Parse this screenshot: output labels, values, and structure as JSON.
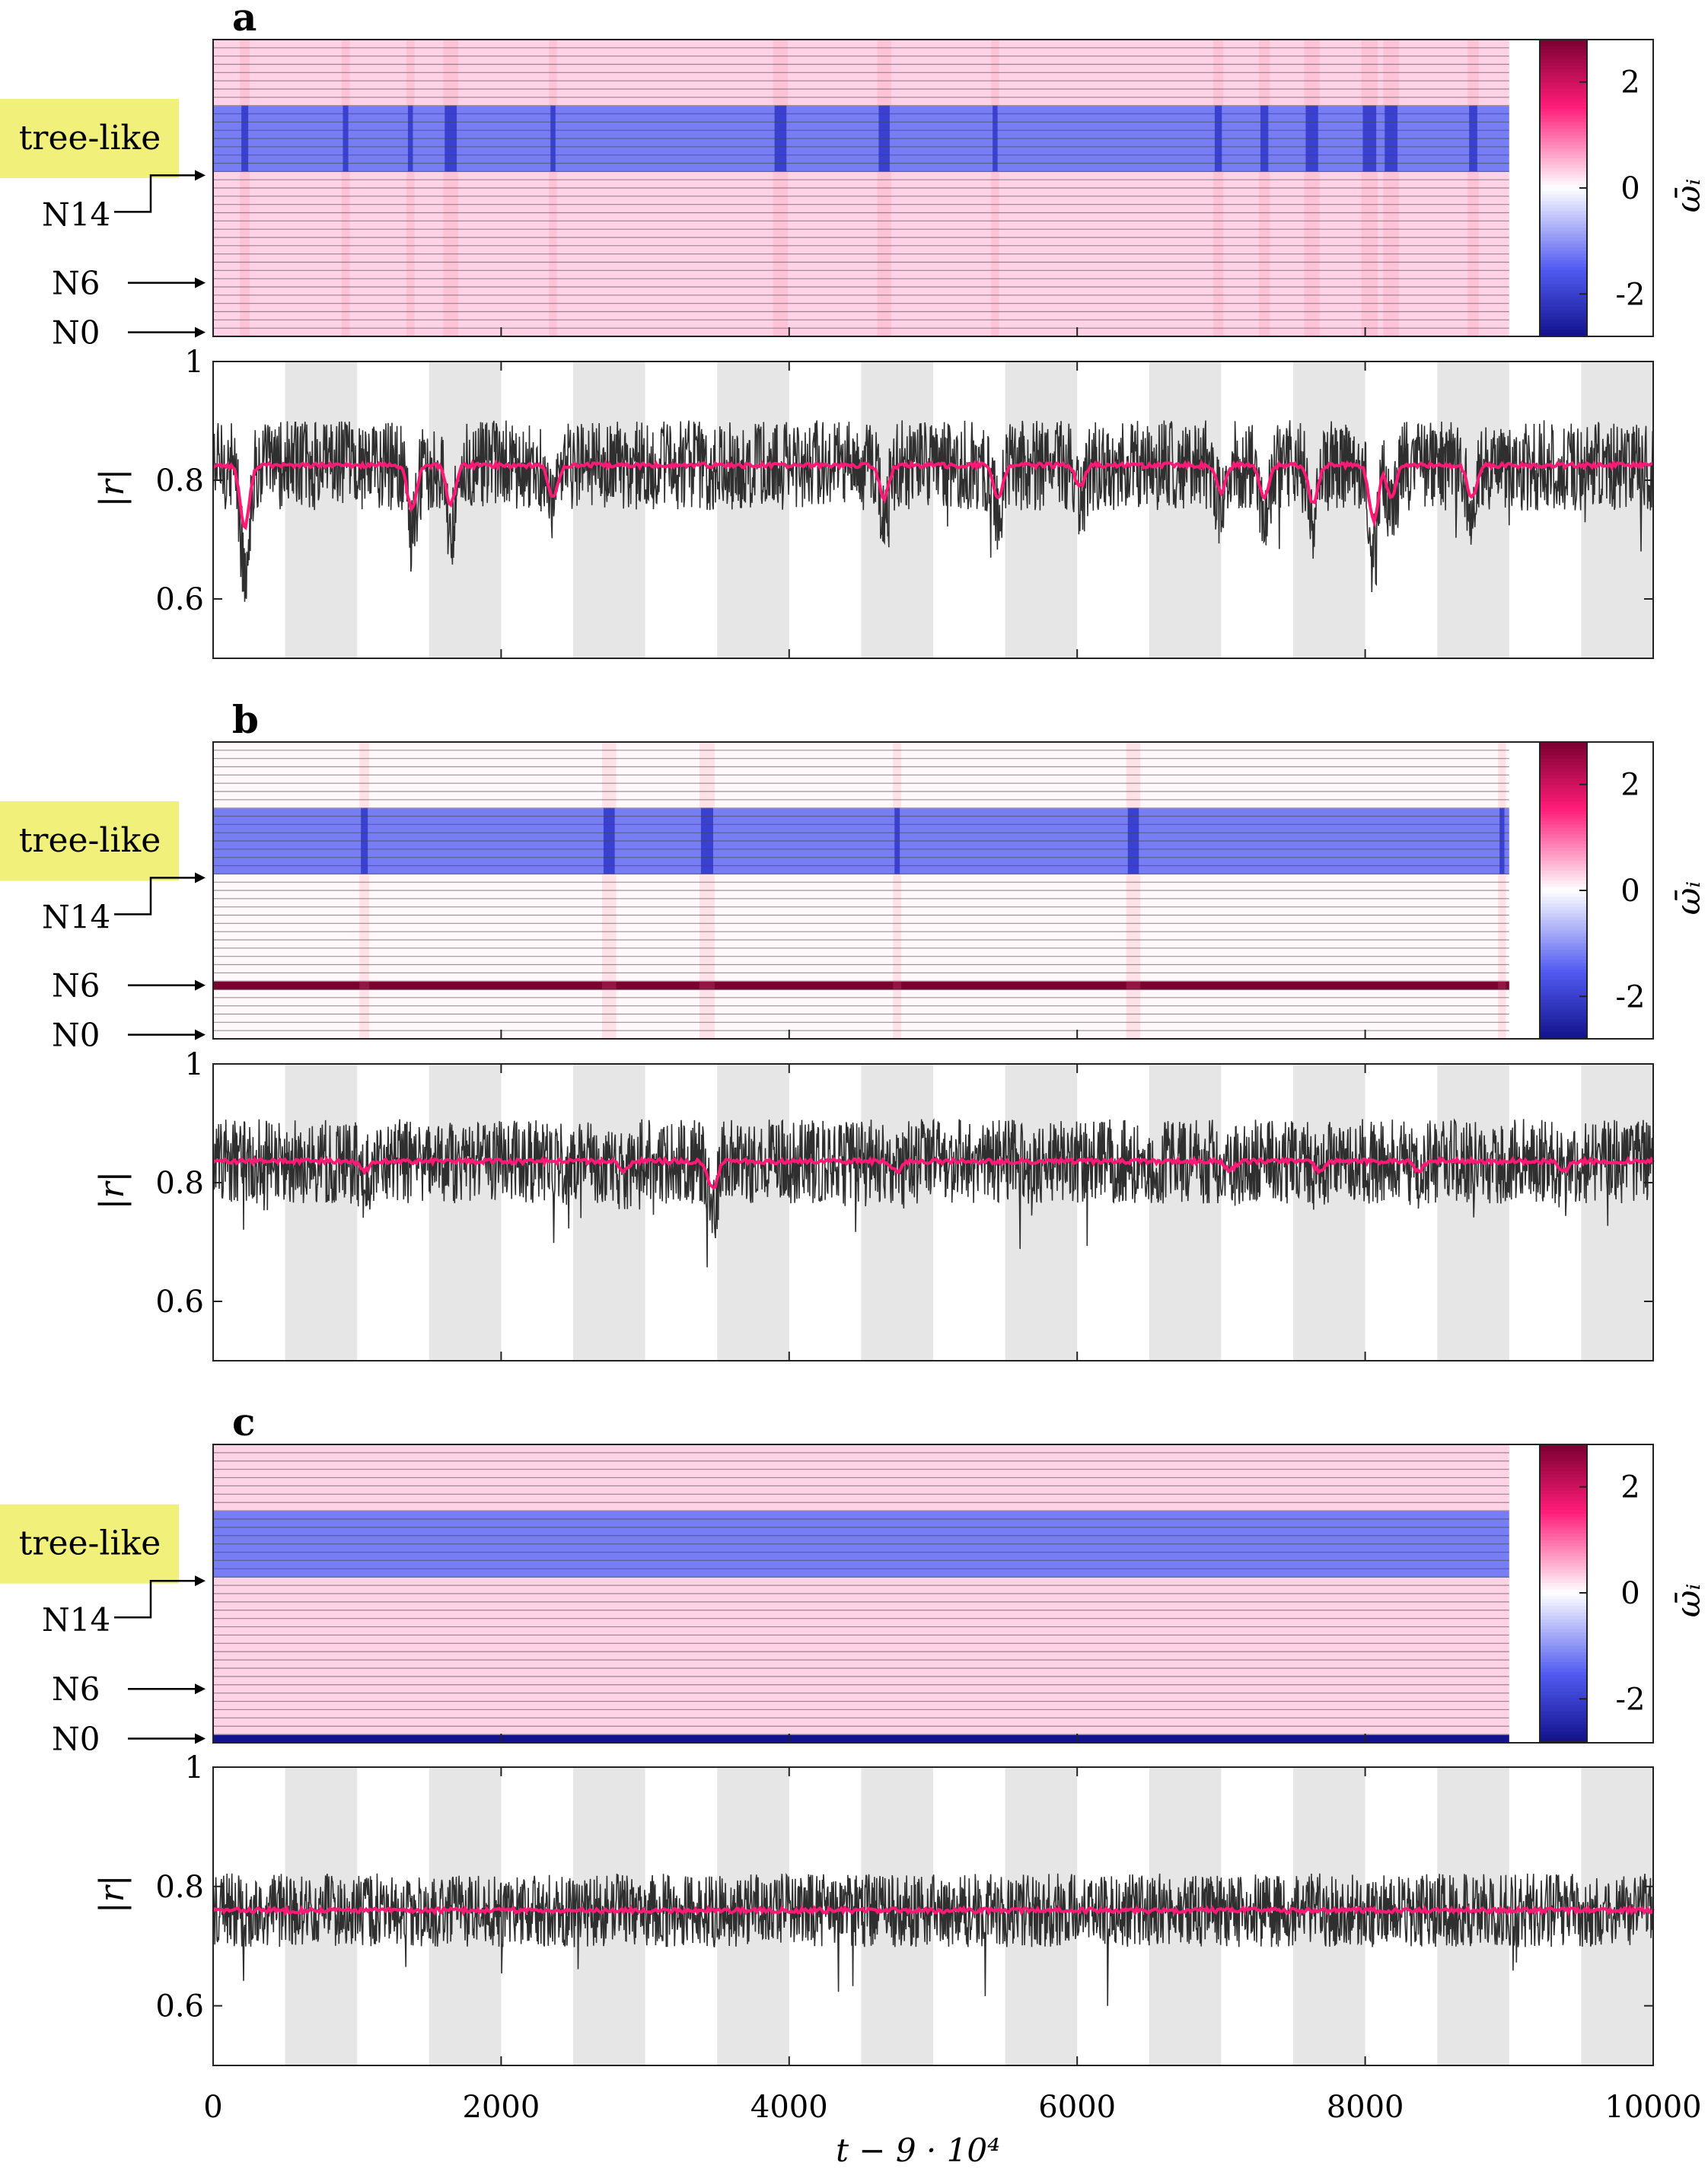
{
  "panels": [
    {
      "label": "a",
      "heat_band": "tree-like",
      "rows": {
        "n14": "N14",
        "n6": "N6",
        "n0": "N0"
      },
      "colorbar": {
        "label": "ω̄ᵢ",
        "ticks": [
          "2",
          "0",
          "-2"
        ]
      },
      "r_axis": {
        "label": "|r|",
        "ticks": [
          "1",
          "0.8",
          "0.6"
        ]
      }
    },
    {
      "label": "b",
      "heat_band": "tree-like",
      "rows": {
        "n14": "N14",
        "n6": "N6",
        "n0": "N0"
      },
      "colorbar": {
        "label": "ω̄ᵢ",
        "ticks": [
          "2",
          "0",
          "-2"
        ]
      },
      "r_axis": {
        "label": "|r|",
        "ticks": [
          "1",
          "0.8",
          "0.6"
        ]
      }
    },
    {
      "label": "c",
      "heat_band": "tree-like",
      "rows": {
        "n14": "N14",
        "n6": "N6",
        "n0": "N0"
      },
      "colorbar": {
        "label": "ω̄ᵢ",
        "ticks": [
          "2",
          "0",
          "-2"
        ]
      },
      "r_axis": {
        "label": "|r|",
        "ticks": [
          "1",
          "0.8",
          "0.6"
        ]
      }
    }
  ],
  "xaxis": {
    "label": "t − 9 · 10⁴",
    "ticks": [
      "0",
      "2000",
      "4000",
      "6000",
      "8000",
      "10000"
    ]
  },
  "colors": {
    "pink": "#ffe3ea",
    "blue": "#7e84f2",
    "dark_blue": "#1a1aa8",
    "crimson": "#7a0030",
    "magenta": "#ff1a75",
    "trace": "#2f2f2f",
    "shade": "#e6e6e6",
    "highlight": "#f0f07a"
  },
  "chart_data": [
    {
      "type": "heatmap+line",
      "panel": "a",
      "title": "a",
      "heatmap": {
        "x_range": [
          0,
          9000
        ],
        "rows": 36,
        "tree_like_rows": [
          20,
          27
        ],
        "tree_like_value": -1.2,
        "other_value": 0.3,
        "colorbar_range": [
          -2.8,
          2.8
        ],
        "events_x": [
          220,
          920,
          1370,
          1650,
          2360,
          3940,
          4660,
          5430,
          6980,
          7300,
          7630,
          8030,
          8180,
          8750
        ],
        "special_rows": []
      },
      "line": {
        "x_range": [
          0,
          10000
        ],
        "ylim": [
          0.5,
          1
        ],
        "raw_band": [
          0.74,
          0.9
        ],
        "mean": 0.825,
        "dips": [
          [
            220,
            0.72
          ],
          [
            1380,
            0.75
          ],
          [
            1650,
            0.76
          ],
          [
            2360,
            0.77
          ],
          [
            4660,
            0.77
          ],
          [
            5450,
            0.77
          ],
          [
            6020,
            0.79
          ],
          [
            7000,
            0.78
          ],
          [
            7300,
            0.77
          ],
          [
            7640,
            0.76
          ],
          [
            8060,
            0.73
          ],
          [
            8180,
            0.77
          ],
          [
            8740,
            0.77
          ]
        ],
        "shaded_x": [
          [
            500,
            1000
          ],
          [
            1500,
            2000
          ],
          [
            2500,
            3000
          ],
          [
            3500,
            4000
          ],
          [
            4500,
            5000
          ],
          [
            5500,
            6000
          ],
          [
            6500,
            7000
          ],
          [
            7500,
            8000
          ],
          [
            8500,
            9000
          ],
          [
            9500,
            10000
          ]
        ]
      }
    },
    {
      "type": "heatmap+line",
      "panel": "b",
      "title": "b",
      "heatmap": {
        "x_range": [
          0,
          9000
        ],
        "rows": 36,
        "tree_like_rows": [
          20,
          27
        ],
        "tree_like_value": -1.2,
        "other_value": 0.05,
        "colorbar_range": [
          -2.8,
          2.8
        ],
        "events_x": [
          1050,
          2750,
          3430,
          4750,
          6390,
          8950
        ],
        "special_rows": [
          {
            "row": 6,
            "value": 2.8
          }
        ]
      },
      "line": {
        "x_range": [
          0,
          10000
        ],
        "ylim": [
          0.5,
          1
        ],
        "raw_band": [
          0.76,
          0.91
        ],
        "mean": 0.836,
        "dips": [
          [
            1050,
            0.82
          ],
          [
            2850,
            0.82
          ],
          [
            3470,
            0.79
          ],
          [
            4750,
            0.82
          ],
          [
            7060,
            0.82
          ],
          [
            7680,
            0.82
          ],
          [
            8370,
            0.82
          ],
          [
            9380,
            0.82
          ]
        ],
        "shaded_x": [
          [
            500,
            1000
          ],
          [
            1500,
            2000
          ],
          [
            2500,
            3000
          ],
          [
            3500,
            4000
          ],
          [
            4500,
            5000
          ],
          [
            5500,
            6000
          ],
          [
            6500,
            7000
          ],
          [
            7500,
            8000
          ],
          [
            8500,
            9000
          ],
          [
            9500,
            10000
          ]
        ]
      }
    },
    {
      "type": "heatmap+line",
      "panel": "c",
      "title": "c",
      "heatmap": {
        "x_range": [
          0,
          9000
        ],
        "rows": 36,
        "tree_like_rows": [
          20,
          27
        ],
        "tree_like_value": -1.2,
        "other_value": 0.3,
        "colorbar_range": [
          -2.8,
          2.8
        ],
        "events_x": [],
        "special_rows": [
          {
            "row": 0,
            "value": -2.8
          }
        ]
      },
      "line": {
        "x_range": [
          0,
          10000
        ],
        "ylim": [
          0.5,
          1
        ],
        "raw_band": [
          0.7,
          0.83
        ],
        "mean": 0.76,
        "dips": [],
        "shaded_x": [
          [
            500,
            1000
          ],
          [
            1500,
            2000
          ],
          [
            2500,
            3000
          ],
          [
            3500,
            4000
          ],
          [
            4500,
            5000
          ],
          [
            5500,
            6000
          ],
          [
            6500,
            7000
          ],
          [
            7500,
            8000
          ],
          [
            8500,
            9000
          ],
          [
            9500,
            10000
          ]
        ]
      }
    }
  ]
}
